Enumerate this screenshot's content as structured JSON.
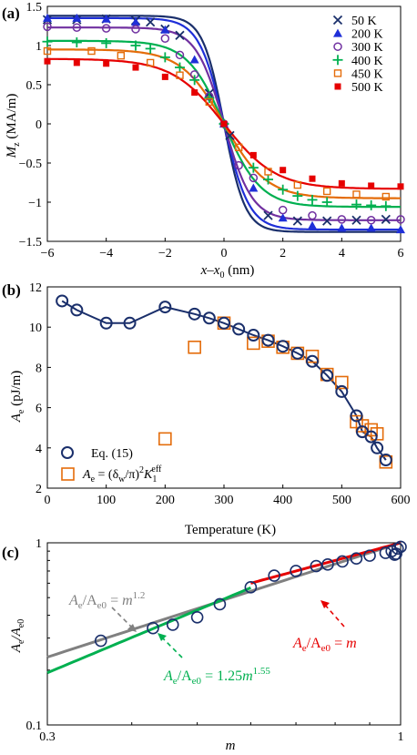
{
  "chart_data": [
    {
      "panel_label": "(a)",
      "type": "scatter",
      "xlabel": "x−x₀ (nm)",
      "ylabel": "M_z (MA/m)",
      "xlim": [
        -6,
        6
      ],
      "ylim": [
        -1.5,
        1.5
      ],
      "x_ticks": [
        -6,
        -4,
        -2,
        0,
        2,
        4,
        6
      ],
      "y_ticks": [
        -1.5,
        -1,
        -0.5,
        0,
        0.5,
        1,
        1.5
      ],
      "legend_position": "top-right",
      "series": [
        {
          "name": "50 K",
          "color": "#1a2f6b",
          "marker": "x",
          "Ms": 1.38,
          "w": 0.72,
          "x": [
            -6,
            -5,
            -4,
            -3,
            -2.5,
            -2,
            -1.5,
            -0.5,
            0.2,
            1.5,
            2.5,
            3.5,
            4.5,
            5.5
          ],
          "y": [
            1.33,
            1.33,
            1.34,
            1.32,
            1.3,
            1.21,
            1.13,
            0.39,
            -0.15,
            -1.17,
            -1.24,
            -1.24,
            -1.23,
            -1.22
          ]
        },
        {
          "name": "200 K",
          "color": "#1f2fd8",
          "marker": "triangle",
          "Ms": 1.35,
          "w": 0.85,
          "x": [
            -6,
            -5,
            -4,
            -3,
            -2,
            -1,
            0,
            1,
            2,
            3,
            4,
            5,
            6
          ],
          "y": [
            1.35,
            1.35,
            1.34,
            1.3,
            1.2,
            0.82,
            0.0,
            -0.82,
            -1.2,
            -1.3,
            -1.33,
            -1.33,
            -1.35
          ]
        },
        {
          "name": "300 K",
          "color": "#7030a0",
          "marker": "circle",
          "Ms": 1.23,
          "w": 0.95,
          "x": [
            -6,
            -5,
            -4,
            -3,
            -2,
            -1.5,
            -1,
            -0.5,
            0,
            0.5,
            1,
            2,
            3,
            4,
            5,
            6
          ],
          "y": [
            1.24,
            1.23,
            1.22,
            1.21,
            1.09,
            0.88,
            0.63,
            0.35,
            0.0,
            -0.53,
            -0.69,
            -1.1,
            -1.17,
            -1.22,
            -1.23,
            -1.22
          ]
        },
        {
          "name": "400 K",
          "color": "#00b050",
          "marker": "plus",
          "Ms": 1.06,
          "w": 1.25,
          "x": [
            -6,
            -5,
            -4,
            -3,
            -2.5,
            -2,
            -1.5,
            -1,
            -0.5,
            0,
            1,
            1.5,
            2,
            2.5,
            3,
            3.5,
            4.5,
            5,
            5.5
          ],
          "y": [
            1.05,
            1.04,
            1.03,
            1.0,
            0.96,
            0.85,
            0.72,
            0.56,
            0.33,
            0.0,
            -0.56,
            -0.71,
            -0.84,
            -0.92,
            -0.97,
            -1.0,
            -1.03,
            -1.04,
            -1.05
          ]
        },
        {
          "name": "450 K",
          "color": "#e46c0a",
          "marker": "square",
          "Ms": 0.95,
          "w": 1.45,
          "x": [
            -6,
            -4.5,
            -3.5,
            -2.5,
            -1.5,
            -0.5,
            0.5,
            1.5,
            2.5,
            3.5,
            4.5,
            5.5
          ],
          "y": [
            0.93,
            0.93,
            0.87,
            0.78,
            0.62,
            0.28,
            -0.3,
            -0.61,
            -0.78,
            -0.86,
            -0.9,
            -0.93
          ]
        },
        {
          "name": "500 K",
          "color": "#e60000",
          "marker": "filled-square",
          "Ms": 0.83,
          "w": 1.75,
          "x": [
            -6,
            -5,
            -4,
            -3,
            -2,
            -1,
            0,
            1,
            2,
            3,
            4,
            5,
            6
          ],
          "y": [
            0.8,
            0.78,
            0.77,
            0.72,
            0.6,
            0.4,
            0.0,
            -0.4,
            -0.59,
            -0.7,
            -0.76,
            -0.79,
            -0.8
          ]
        }
      ]
    },
    {
      "panel_label": "(b)",
      "type": "scatter",
      "xlabel": "Temperature (K)",
      "ylabel": "A_e (pJ/m)",
      "xlim": [
        0,
        600
      ],
      "ylim": [
        2,
        12
      ],
      "x_ticks": [
        0,
        100,
        200,
        300,
        400,
        500,
        600
      ],
      "y_ticks": [
        2,
        4,
        6,
        8,
        10,
        12
      ],
      "legend_position": "bottom-left",
      "series": [
        {
          "name": "Eq. (15)",
          "color": "#1a2f6b",
          "marker": "circle",
          "with_line": true,
          "x": [
            25,
            50,
            100,
            140,
            200,
            250,
            275,
            300,
            325,
            350,
            375,
            400,
            425,
            450,
            475,
            500,
            525,
            535,
            550,
            560,
            575
          ],
          "y": [
            11.3,
            10.85,
            10.2,
            10.2,
            11.0,
            10.65,
            10.45,
            10.2,
            9.9,
            9.6,
            9.35,
            9.05,
            8.7,
            8.3,
            7.6,
            6.8,
            5.6,
            4.8,
            4.55,
            4.0,
            3.4
          ]
        },
        {
          "name_prefix": "A",
          "name_sub": "e",
          "name_mid": " = (δ",
          "name_sub2": "w",
          "name_mid2": "/π)",
          "name_sup": "2",
          "name_k": "K",
          "name_ksub": "1",
          "name_ksup": "eff",
          "color": "#e46c0a",
          "marker": "square",
          "x": [
            200,
            250,
            300,
            350,
            375,
            400,
            425,
            450,
            475,
            500,
            525,
            535,
            550,
            560,
            575
          ],
          "y": [
            4.45,
            9.0,
            10.2,
            9.2,
            9.3,
            9.0,
            8.7,
            8.55,
            7.65,
            7.25,
            5.3,
            5.1,
            4.9,
            4.7,
            3.3
          ]
        }
      ]
    },
    {
      "panel_label": "(c)",
      "type": "scatter",
      "xlabel": "m",
      "ylabel": "A_e/A_e0",
      "xscale": "log",
      "yscale": "log",
      "xlim": [
        0.3,
        1
      ],
      "ylim": [
        0.1,
        1
      ],
      "x_ticks": [
        0.3,
        1
      ],
      "y_ticks": [
        0.1,
        1
      ],
      "points": {
        "color": "#1a2f6b",
        "marker": "circle",
        "x": [
          0.36,
          0.43,
          0.46,
          0.5,
          0.54,
          0.6,
          0.65,
          0.7,
          0.75,
          0.78,
          0.82,
          0.86,
          0.9,
          0.95,
          0.97,
          0.98,
          0.99,
          1.0,
          0.985
        ],
        "y": [
          0.29,
          0.34,
          0.355,
          0.39,
          0.46,
          0.57,
          0.66,
          0.7,
          0.745,
          0.76,
          0.79,
          0.82,
          0.85,
          0.88,
          0.9,
          0.86,
          0.93,
          0.95,
          0.87
        ]
      },
      "fits": [
        {
          "color": "#808080",
          "coef": 1.0,
          "exp": 1.2,
          "x_range": [
            0.3,
            1
          ]
        },
        {
          "color": "#e60000",
          "coef": 1.0,
          "exp": 1.0,
          "x_range": [
            0.6,
            1
          ]
        },
        {
          "color": "#00b050",
          "coef": 1.25,
          "exp": 1.55,
          "x_range": [
            0.3,
            0.6
          ]
        }
      ],
      "annotations": {
        "gray": {
          "lhs": "A",
          "lhs_sub": "e",
          "mid": "/A",
          "mid_sub": "e0",
          "eq": " = ",
          "rhs": "m",
          "rhs_sup": "1.2"
        },
        "red": {
          "lhs": "A",
          "lhs_sub": "e",
          "mid": "/A",
          "mid_sub": "e0",
          "eq": " = ",
          "rhs": "m"
        },
        "green": {
          "lhs": "A",
          "lhs_sub": "e",
          "mid": "/A",
          "mid_sub": "e0",
          "eq": " = 1.25",
          "rhs": "m",
          "rhs_sup": "1.55"
        }
      }
    }
  ],
  "panels": {
    "a": {
      "label": "(a)",
      "xlab_main": "x",
      "xlab_dash": "–",
      "xlab_x0": "x",
      "xlab_x0sub": "0",
      "xlab_unit": " (nm)",
      "ylab_main": "M",
      "ylab_sub": "z",
      "ylab_unit": " (MA/m)"
    },
    "b": {
      "label": "(b)",
      "xlab": "Temperature (K)",
      "ylab_main": "A",
      "ylab_sub": "e",
      "ylab_unit": " (pJ/m)",
      "legend1": "Eq. (15)"
    },
    "c": {
      "label": "(c)",
      "xlab": "m",
      "ylab_main": "A",
      "ylab_sub": "e",
      "ylab_mid": "/A",
      "ylab_sub2": "e0"
    }
  }
}
